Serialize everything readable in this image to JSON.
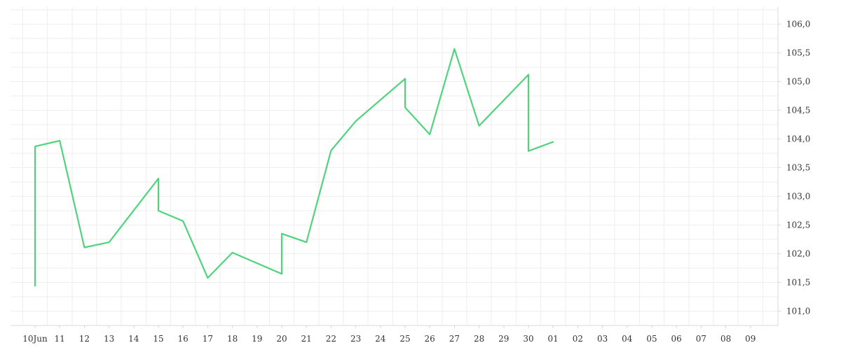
{
  "chart_data": {
    "type": "line",
    "x_tick_labels": [
      "10Jun",
      "11",
      "12",
      "13",
      "14",
      "15",
      "16",
      "17",
      "18",
      "19",
      "20",
      "21",
      "22",
      "23",
      "24",
      "25",
      "26",
      "27",
      "28",
      "29",
      "30",
      "01",
      "02",
      "03",
      "04",
      "05",
      "06",
      "07",
      "08",
      "09"
    ],
    "y_tick_labels": [
      "101,0",
      "101,5",
      "102,0",
      "102,5",
      "103,0",
      "103,5",
      "104,0",
      "104,5",
      "105,0",
      "105,5",
      "106,0"
    ],
    "y_ticks": [
      101.0,
      101.5,
      102.0,
      102.5,
      103.0,
      103.5,
      104.0,
      104.5,
      105.0,
      105.5,
      106.0
    ],
    "ylim": [
      100.75,
      106.3
    ],
    "x": [
      "2024-06-09T12:00",
      "2024-06-10T12:00",
      "2024-06-11T12:00",
      "2024-06-12T12:00",
      "2024-06-13T12:00",
      "2024-06-16T12:00",
      "2024-06-17T12:00",
      "2024-06-18T12:00",
      "2024-06-19T12:00",
      "2024-06-20T12:00",
      "2024-06-23T12:00",
      "2024-06-24T12:00",
      "2024-06-25T12:00",
      "2024-06-26T12:00",
      "2024-06-27T12:00",
      "2024-06-30T12:00",
      "2024-07-01T12:00",
      "2024-07-02T12:00",
      "2024-07-03T12:00",
      "2024-07-04T12:00",
      "2024-07-07T12:00",
      "2024-07-08T12:00",
      "2024-07-09T12:00"
    ],
    "series": [
      {
        "color": "#4fd47c",
        "values": [
          101.44,
          103.87,
          103.97,
          102.11,
          102.2,
          103.31,
          102.75,
          102.57,
          101.58,
          102.02,
          101.65,
          102.35,
          102.2,
          103.8,
          104.31,
          105.05,
          104.55,
          104.08,
          105.57,
          104.23,
          105.12,
          103.79,
          103.95
        ]
      }
    ],
    "grid": true,
    "y_axis_position": "right",
    "legend": false
  }
}
